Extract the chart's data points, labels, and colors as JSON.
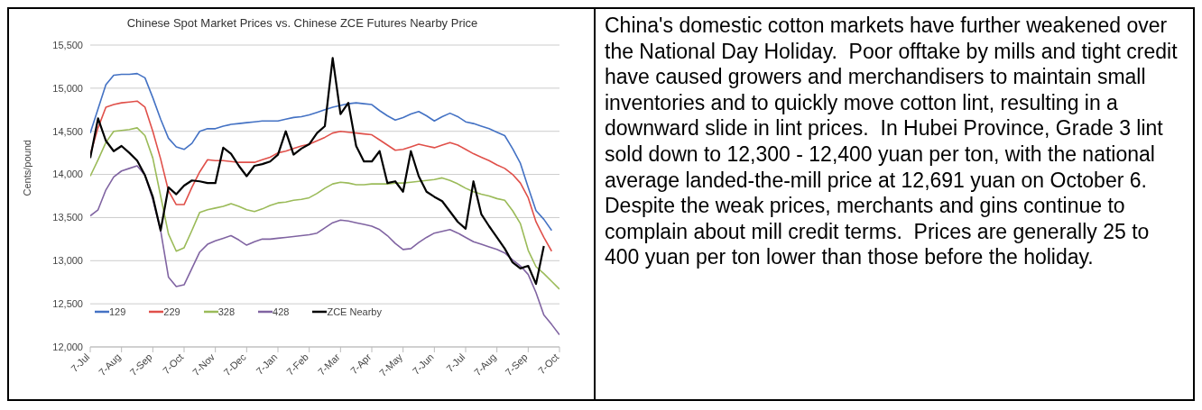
{
  "chart_data": {
    "type": "line",
    "title": "Chinese Spot Market Prices vs. Chinese ZCE Futures Nearby Price",
    "ylabel": "Cents/pound",
    "categories": [
      "7-Jul",
      null,
      null,
      null,
      "7-Aug",
      null,
      null,
      null,
      "7-Sep",
      null,
      null,
      null,
      "7-Oct",
      null,
      null,
      null,
      "7-Nov",
      null,
      null,
      null,
      "7-Dec",
      null,
      null,
      null,
      "7-Jan",
      null,
      null,
      null,
      "7-Feb",
      null,
      null,
      null,
      "7-Mar",
      null,
      null,
      null,
      "7-Apr",
      null,
      null,
      null,
      "7-May",
      null,
      null,
      null,
      "7-Jun",
      null,
      null,
      null,
      "7-Jul",
      null,
      null,
      null,
      "7-Aug",
      null,
      null,
      null,
      "7-Sep",
      null,
      null,
      null,
      "7-Oct"
    ],
    "ylim": [
      12000,
      15500
    ],
    "yticks": [
      {
        "value": 12000,
        "label": "12,000"
      },
      {
        "value": 12500,
        "label": "12,500"
      },
      {
        "value": 13000,
        "label": "13,000"
      },
      {
        "value": 13500,
        "label": "13,500"
      },
      {
        "value": 14000,
        "label": "14,000"
      },
      {
        "value": 14500,
        "label": "14,500"
      },
      {
        "value": 15000,
        "label": "15,000"
      },
      {
        "value": 15500,
        "label": "15,500"
      }
    ],
    "grid": "y",
    "legend": "bottom",
    "marker": "none",
    "line_style": "solid",
    "series": [
      {
        "name": "129",
        "color": "#4472c4",
        "values": [
          14480,
          14760,
          15040,
          15150,
          15160,
          15160,
          15170,
          15120,
          14890,
          14640,
          14420,
          14320,
          14290,
          14360,
          14500,
          14530,
          14530,
          14560,
          14580,
          14590,
          14600,
          14610,
          14620,
          14620,
          14620,
          14640,
          14660,
          14670,
          14690,
          14720,
          14750,
          14780,
          14800,
          14820,
          14830,
          14820,
          14810,
          14740,
          14680,
          14630,
          14660,
          14700,
          14730,
          14680,
          14620,
          14670,
          14710,
          14670,
          14610,
          14590,
          14560,
          14530,
          14490,
          14450,
          14300,
          14130,
          13850,
          13580,
          13480,
          13350,
          null
        ]
      },
      {
        "name": "229",
        "color": "#e0504a",
        "values": [
          14230,
          14540,
          14780,
          14810,
          14830,
          14840,
          14850,
          14780,
          14500,
          14180,
          13810,
          13650,
          13650,
          13850,
          14030,
          14170,
          14160,
          14160,
          14150,
          14140,
          14140,
          14140,
          14170,
          14200,
          14250,
          14270,
          14300,
          14330,
          14350,
          14390,
          14430,
          14480,
          14500,
          14490,
          14480,
          14470,
          14460,
          14400,
          14340,
          14280,
          14290,
          14320,
          14350,
          14330,
          14310,
          14340,
          14370,
          14340,
          14290,
          14240,
          14200,
          14160,
          14110,
          14070,
          14000,
          13900,
          13730,
          13450,
          13270,
          13110,
          null
        ]
      },
      {
        "name": "328",
        "color": "#9bbb59",
        "values": [
          13980,
          14170,
          14370,
          14500,
          14510,
          14520,
          14540,
          14450,
          14190,
          13750,
          13310,
          13110,
          13150,
          13350,
          13560,
          13590,
          13610,
          13630,
          13660,
          13630,
          13590,
          13570,
          13600,
          13640,
          13670,
          13680,
          13700,
          13710,
          13730,
          13780,
          13840,
          13890,
          13910,
          13900,
          13880,
          13880,
          13890,
          13890,
          13890,
          13900,
          13900,
          13910,
          13920,
          13930,
          13940,
          13960,
          13930,
          13890,
          13840,
          13800,
          13770,
          13750,
          13720,
          13700,
          13580,
          13430,
          13120,
          12930,
          12850,
          12760,
          12670
        ]
      },
      {
        "name": "428",
        "color": "#8064a2",
        "values": [
          13520,
          13590,
          13820,
          13970,
          14040,
          14070,
          14100,
          13990,
          13710,
          13350,
          12810,
          12700,
          12720,
          12910,
          13100,
          13190,
          13230,
          13260,
          13290,
          13240,
          13180,
          13220,
          13250,
          13250,
          13260,
          13270,
          13280,
          13290,
          13300,
          13320,
          13380,
          13440,
          13470,
          13460,
          13440,
          13420,
          13400,
          13360,
          13290,
          13200,
          13130,
          13140,
          13210,
          13270,
          13320,
          13340,
          13360,
          13320,
          13270,
          13220,
          13190,
          13160,
          13130,
          13090,
          13010,
          12940,
          12840,
          12630,
          12370,
          12260,
          12140
        ]
      },
      {
        "name": "ZCE Nearby",
        "color": "#000000",
        "values": [
          14190,
          14650,
          14390,
          14270,
          14330,
          14250,
          14160,
          13990,
          13740,
          13350,
          13850,
          13770,
          13870,
          13930,
          13920,
          13900,
          13900,
          14310,
          14240,
          14100,
          13980,
          14100,
          14120,
          14150,
          14230,
          14500,
          14230,
          14300,
          14350,
          14480,
          14560,
          15350,
          14700,
          14830,
          14330,
          14150,
          14150,
          14270,
          13900,
          13920,
          13800,
          14270,
          13980,
          13800,
          13740,
          13690,
          13570,
          13450,
          13370,
          13920,
          13540,
          13400,
          13270,
          13140,
          12980,
          12910,
          12940,
          12730,
          13170,
          null,
          null
        ]
      }
    ],
    "annotations": [
      "China's domestic cotton markets have further weakened over the National Day Holiday.  Poor offtake by mills and tight credit have caused growers and merchandisers to maintain small inventories and to quickly move cotton lint, resulting in a downward slide in lint prices.  In Hubei Province, Grade 3 lint sold down to 12,300 - 12,400 yuan per ton, with the national average landed-the-mill price at 12,691 yuan on October 6.  Despite the weak prices, merchants and gins continue to complain about mill credit terms.  Prices are generally 25 to 400 yuan per ton lower than those before the holiday."
    ]
  }
}
